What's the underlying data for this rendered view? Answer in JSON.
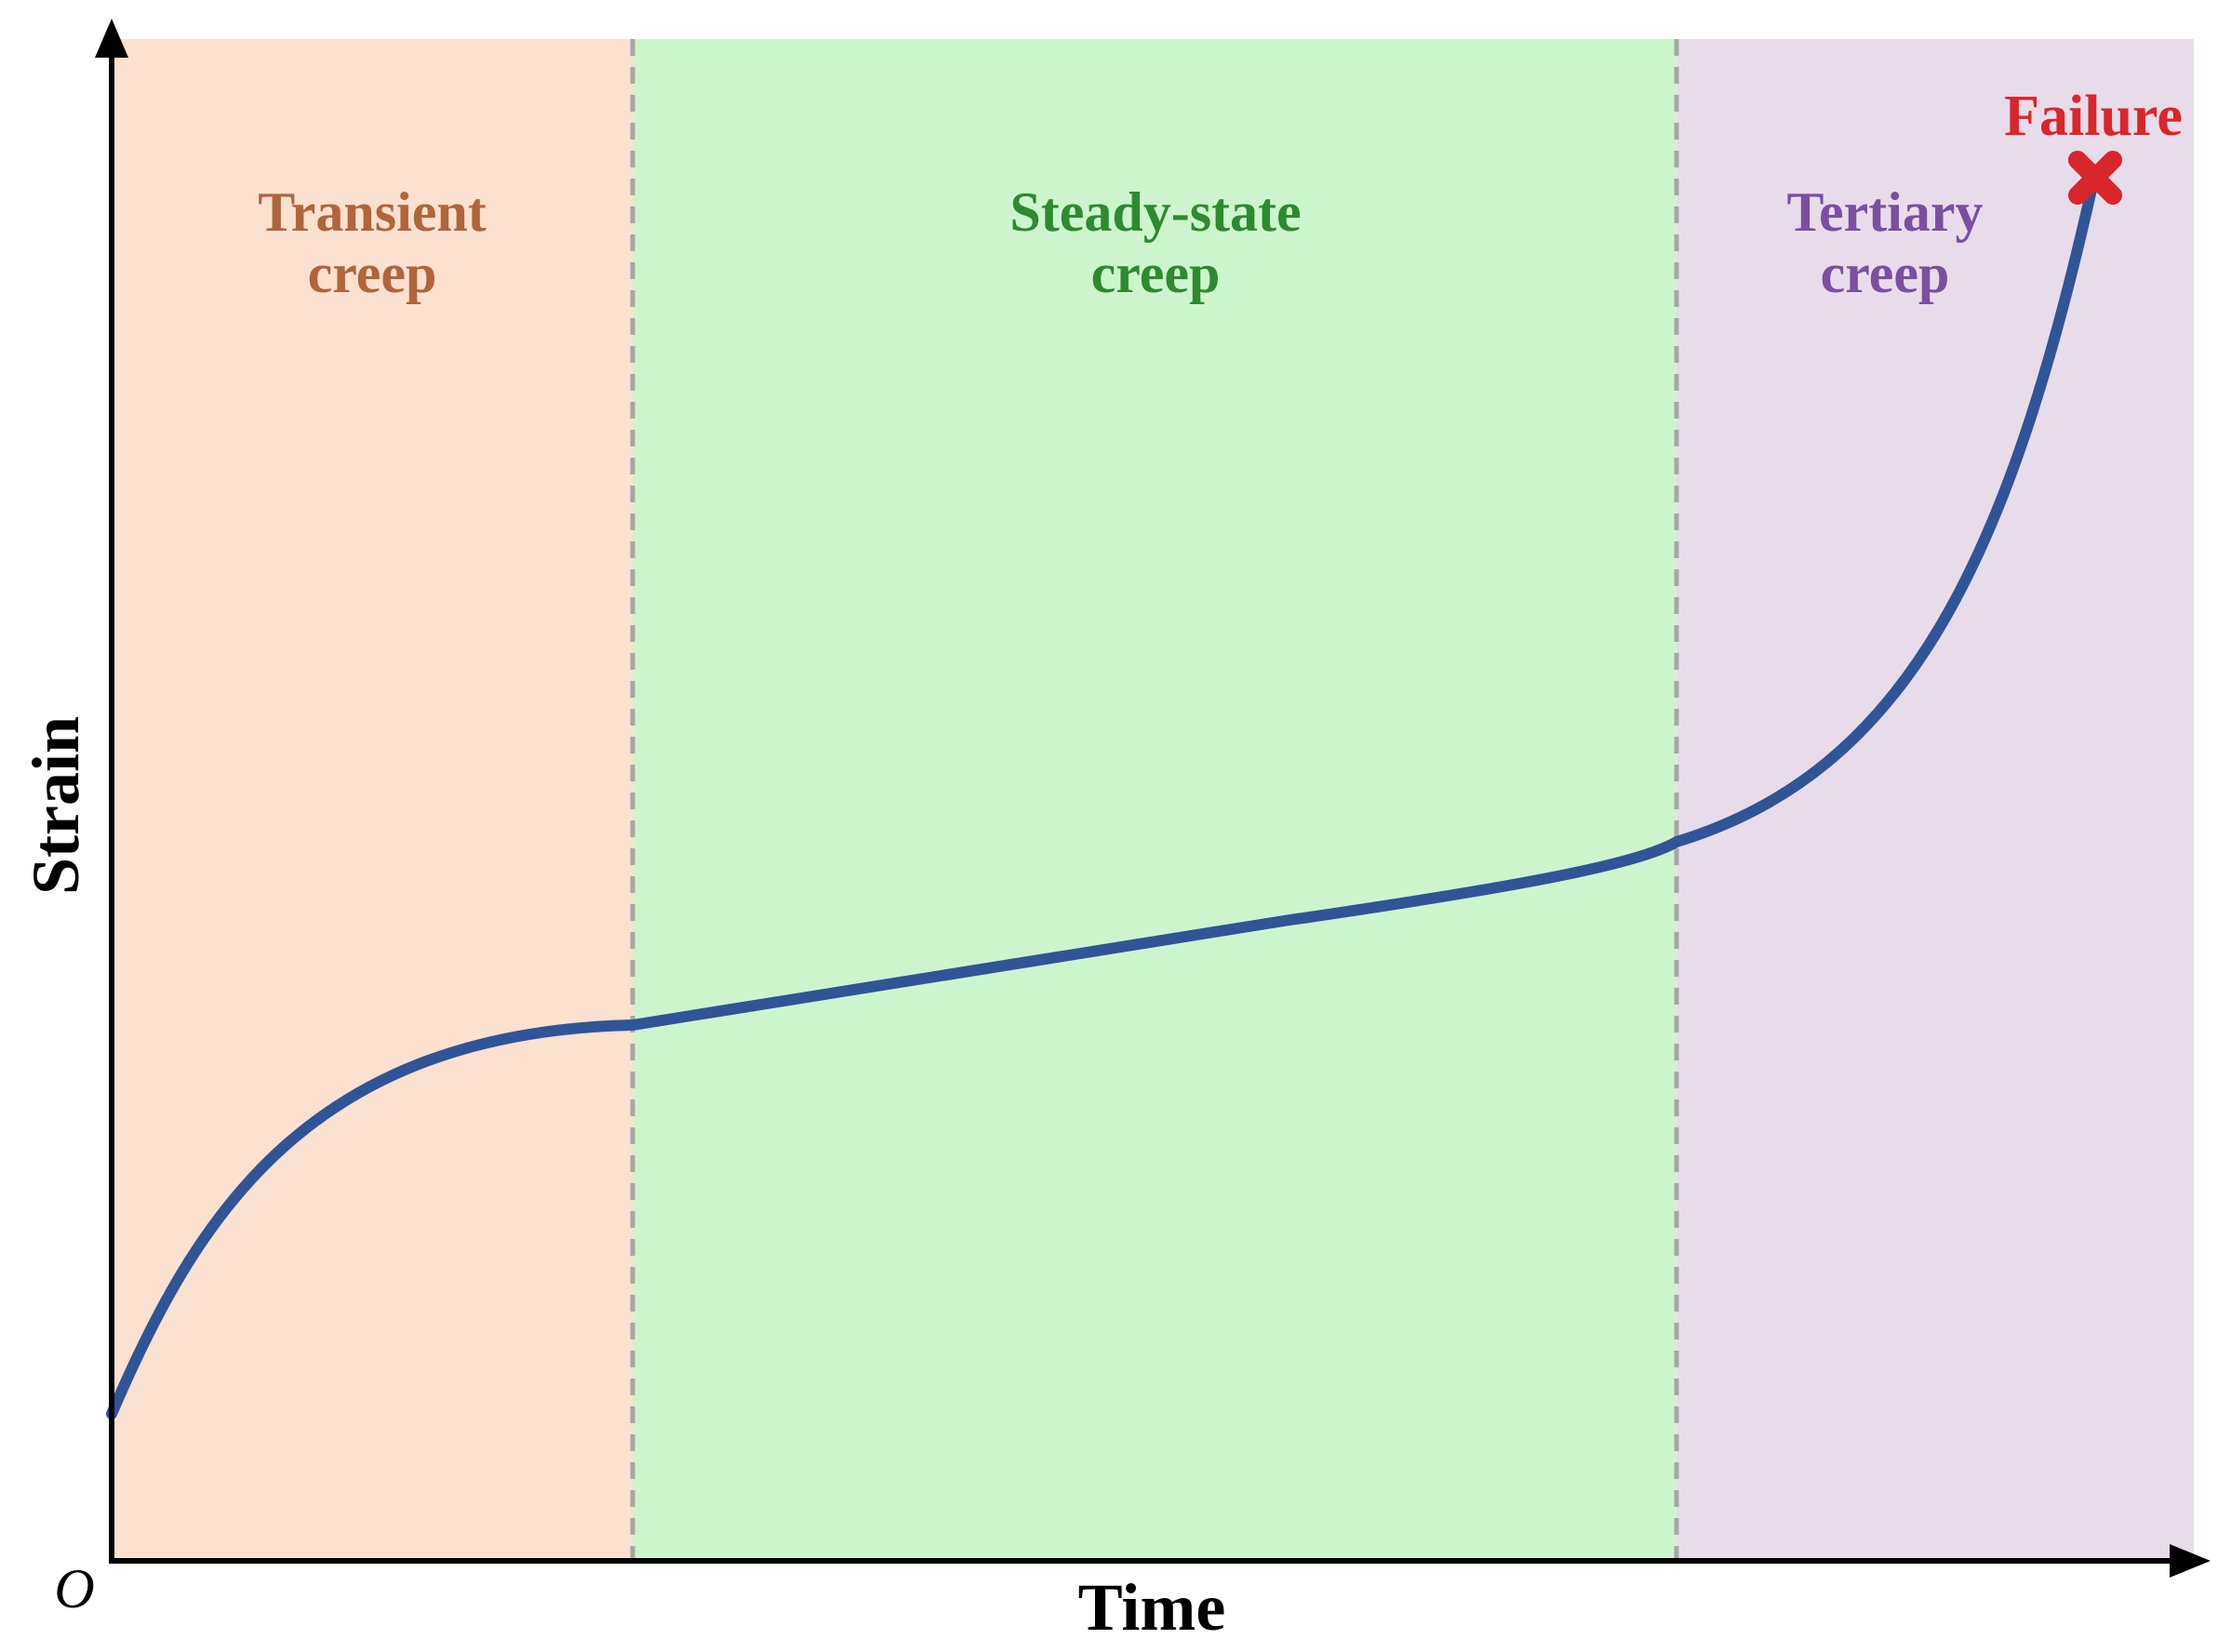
{
  "axes": {
    "x_label": "Time",
    "y_label": "Strain",
    "origin_label": "O"
  },
  "stages": [
    {
      "id": "transient",
      "label_line1": "Transient",
      "label_line2": "creep",
      "fill_color": "#fce0d0",
      "text_color": "#b0653a"
    },
    {
      "id": "steady",
      "label_line1": "Steady-state",
      "label_line2": "creep",
      "fill_color": "#cdf5cd",
      "text_color": "#2e8a2e"
    },
    {
      "id": "tertiary",
      "label_line1": "Tertiary",
      "label_line2": "creep",
      "fill_color": "#e8dcea",
      "text_color": "#7a4fa0"
    }
  ],
  "failure": {
    "label": "Failure",
    "color": "#d9262b"
  },
  "curve": {
    "color": "#2f5597",
    "shape": "three-stage creep curve: decelerating, linear, accelerating to failure"
  },
  "boundary_color": "#a6a6a6",
  "axis_color": "#000000"
}
